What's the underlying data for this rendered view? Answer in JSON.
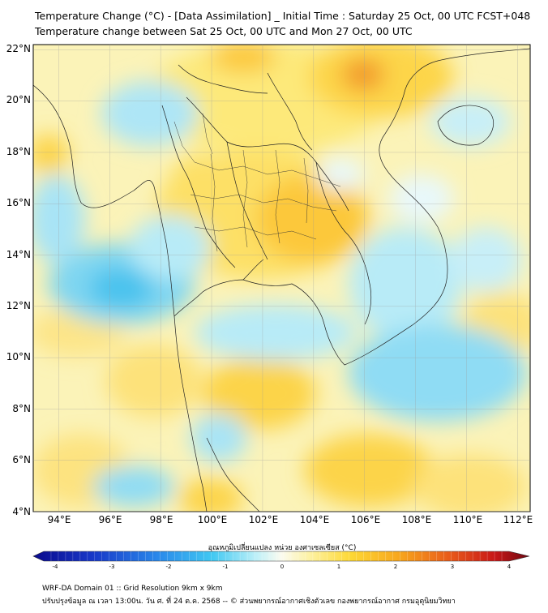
{
  "header": {
    "title_line1": "Temperature Change (°C) - [Data Assimilation] _ Initial Time : Saturday 25 Oct, 00 UTC FCST+048",
    "title_line2": "Temperature change between Sat 25 Oct, 00 UTC and Mon 27 Oct, 00 UTC"
  },
  "map": {
    "lat_labels": [
      "22°N",
      "20°N",
      "18°N",
      "16°N",
      "14°N",
      "12°N",
      "10°N",
      "8°N",
      "6°N",
      "4°N"
    ],
    "lon_labels": [
      "94°E",
      "96°E",
      "98°E",
      "100°E",
      "102°E",
      "104°E",
      "106°E",
      "108°E",
      "110°E",
      "112°E"
    ],
    "lat_range": [
      4,
      22.2
    ],
    "lon_range": [
      93,
      112.5
    ]
  },
  "colorbar": {
    "label": "อุณหภูมิเปลี่ยนแปลง หน่วย องศาเซลเซียส (°C)",
    "ticks": [
      "-4",
      "-3",
      "-2",
      "-1",
      "0",
      "1",
      "2",
      "3",
      "4"
    ],
    "min": -4,
    "max": 4,
    "colors": [
      "#0a0a8c",
      "#1530c8",
      "#2a78e6",
      "#33b4f0",
      "#55d8f5",
      "#a8ecf7",
      "#e8f9fa",
      "#fdfbe0",
      "#fdf07a",
      "#fdd92e",
      "#fbb61e",
      "#f0861b",
      "#e5461a",
      "#c0161a",
      "#7a0a14"
    ]
  },
  "footer": {
    "line1": "WRF-DA Domain 01 :: Grid Resolution 9km x 9km",
    "line2": "ปรับปรุงข้อมูล ณ เวลา 13:00น. วัน ศ. ที่ 24 ต.ค. 2568 -- © ส่วนพยากรณ์อากาศเชิงตัวเลข กองพยากรณ์อากาศ กรมอุตุนิยมวิทยา"
  }
}
